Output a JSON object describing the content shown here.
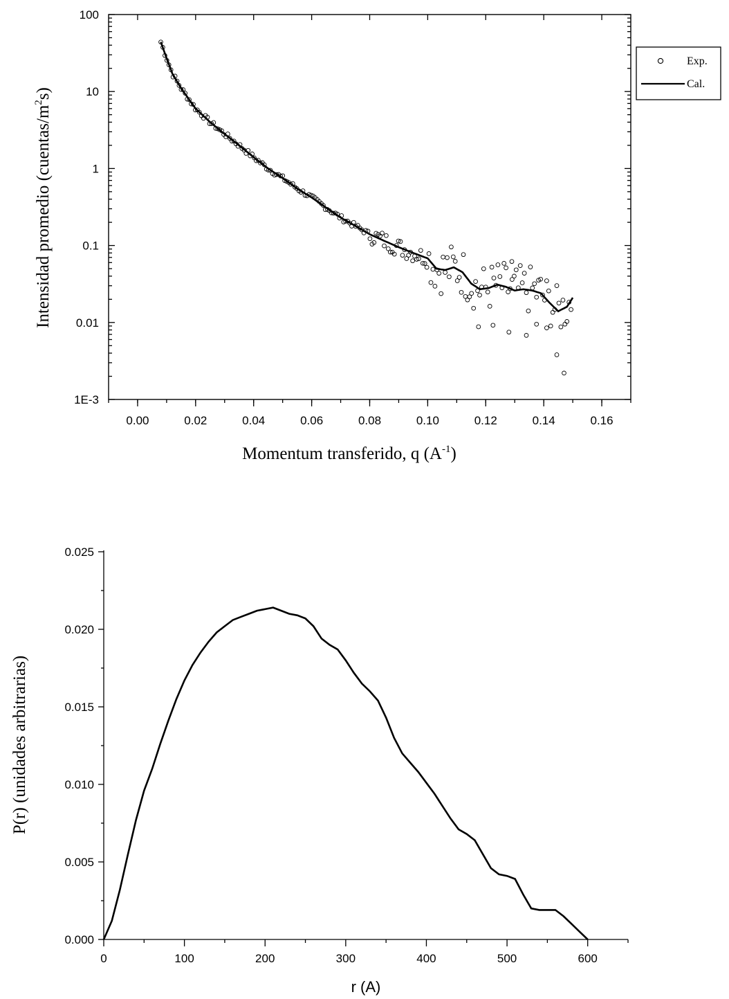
{
  "chart_data": [
    {
      "type": "scatter",
      "title": "",
      "xlabel": "Momentum transferido, q (A",
      "xlabel_sup": "-1",
      "xlabel_end": ")",
      "ylabel": "Intensidad promedio (cuentas/m",
      "ylabel_sup": "2",
      "ylabel_end": "s)",
      "yscale": "log",
      "xlim": [
        -0.01,
        0.17
      ],
      "ylim": [
        0.001,
        100
      ],
      "xticks": [
        "0.00",
        "0.02",
        "0.04",
        "0.06",
        "0.08",
        "0.10",
        "0.12",
        "0.14",
        "0.16"
      ],
      "yticks": [
        "100",
        "10",
        "1",
        "0.1",
        "0.01",
        "1E-3"
      ],
      "legend_position": "outside-right-top",
      "series": [
        {
          "name": "Exp.",
          "style": "open-circle",
          "x_range": [
            0.008,
            0.15
          ],
          "outliers": [
            {
              "x": 0.1175,
              "y": 0.0088
            },
            {
              "x": 0.1225,
              "y": 0.0092
            },
            {
              "x": 0.128,
              "y": 0.0075
            },
            {
              "x": 0.134,
              "y": 0.0068
            },
            {
              "x": 0.1375,
              "y": 0.0095
            },
            {
              "x": 0.1445,
              "y": 0.0038
            },
            {
              "x": 0.147,
              "y": 0.0022
            },
            {
              "x": 0.129,
              "y": 0.062
            },
            {
              "x": 0.141,
              "y": 0.0085
            }
          ]
        },
        {
          "name": "Cal.",
          "style": "line",
          "x": [
            0.008,
            0.01,
            0.012,
            0.015,
            0.02,
            0.025,
            0.03,
            0.035,
            0.04,
            0.045,
            0.05,
            0.055,
            0.06,
            0.065,
            0.07,
            0.075,
            0.08,
            0.085,
            0.09,
            0.095,
            0.1,
            0.103,
            0.106,
            0.109,
            0.112,
            0.115,
            0.118,
            0.121,
            0.124,
            0.127,
            0.13,
            0.133,
            0.136,
            0.139,
            0.142,
            0.145,
            0.148,
            0.15
          ],
          "y": [
            44,
            27,
            17,
            11,
            6,
            4,
            2.8,
            2.0,
            1.4,
            1.0,
            0.75,
            0.55,
            0.42,
            0.31,
            0.23,
            0.18,
            0.14,
            0.115,
            0.095,
            0.08,
            0.068,
            0.05,
            0.048,
            0.052,
            0.045,
            0.032,
            0.027,
            0.028,
            0.031,
            0.029,
            0.026,
            0.027,
            0.026,
            0.024,
            0.018,
            0.014,
            0.016,
            0.021
          ]
        }
      ]
    },
    {
      "type": "line",
      "title": "",
      "xlabel": "r (A)",
      "ylabel": "P(r) (unidades arbitrarias)",
      "xlim": [
        0,
        650
      ],
      "ylim": [
        0,
        0.025
      ],
      "xticks": [
        "0",
        "100",
        "200",
        "300",
        "400",
        "500",
        "600"
      ],
      "yticks": [
        "0.025",
        "0.020",
        "0.015",
        "0.010",
        "0.005",
        "0.000"
      ],
      "series": [
        {
          "name": "",
          "x": [
            0,
            10,
            20,
            30,
            40,
            50,
            60,
            70,
            80,
            90,
            100,
            110,
            120,
            130,
            140,
            150,
            160,
            170,
            180,
            190,
            200,
            210,
            220,
            230,
            240,
            250,
            260,
            270,
            280,
            290,
            300,
            310,
            320,
            330,
            340,
            350,
            360,
            370,
            380,
            390,
            400,
            410,
            420,
            430,
            440,
            450,
            460,
            470,
            480,
            490,
            500,
            510,
            520,
            530,
            540,
            550,
            560,
            570,
            580,
            590,
            600
          ],
          "y": [
            0.0,
            0.0012,
            0.0032,
            0.0055,
            0.0077,
            0.0096,
            0.011,
            0.0126,
            0.0141,
            0.0155,
            0.0167,
            0.0177,
            0.0185,
            0.0192,
            0.0198,
            0.0202,
            0.0206,
            0.0208,
            0.021,
            0.0212,
            0.0213,
            0.0214,
            0.0212,
            0.021,
            0.0209,
            0.0207,
            0.0202,
            0.0194,
            0.019,
            0.0187,
            0.018,
            0.0172,
            0.0165,
            0.016,
            0.0154,
            0.0143,
            0.013,
            0.012,
            0.0114,
            0.0108,
            0.0101,
            0.0094,
            0.0086,
            0.0078,
            0.0071,
            0.0068,
            0.0064,
            0.0055,
            0.0046,
            0.0042,
            0.0041,
            0.0039,
            0.0029,
            0.002,
            0.0019,
            0.0019,
            0.0019,
            0.0015,
            0.001,
            0.0005,
            0.0
          ]
        }
      ]
    }
  ]
}
